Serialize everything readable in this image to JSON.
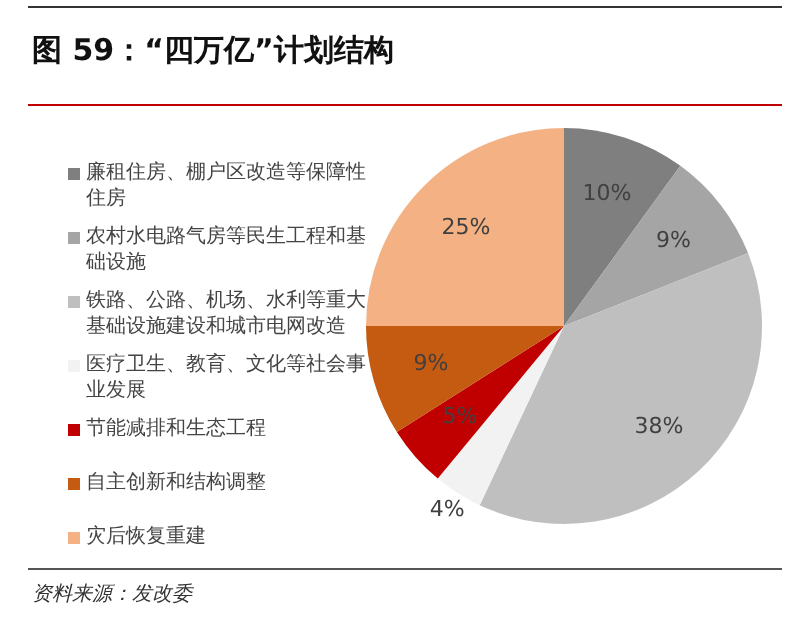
{
  "chart_data": {
    "type": "pie",
    "title": "图 59：“四万亿”计划结构",
    "categories": [
      "廉租住房、棚户区改造等保障性住房",
      "农村水电路气房等民生工程和基础设施",
      "铁路、公路、机场、水利等重大基础设施建设和城市电网改造",
      "医疗卫生、教育、文化等社会事业发展",
      "节能减排和生态工程",
      "自主创新和结构调整",
      "灾后恢复重建"
    ],
    "values": [
      10,
      9,
      38,
      4,
      5,
      9,
      25
    ],
    "value_labels": [
      "10%",
      "9%",
      "38%",
      "4%",
      "5%",
      "9%",
      "25%"
    ],
    "colors": [
      "#7f7f7f",
      "#a5a5a5",
      "#bfbfbf",
      "#f2f2f2",
      "#c00000",
      "#c55a11",
      "#f4b183"
    ],
    "legend": "left",
    "annotations": [
      "资料来源：发改委"
    ]
  }
}
